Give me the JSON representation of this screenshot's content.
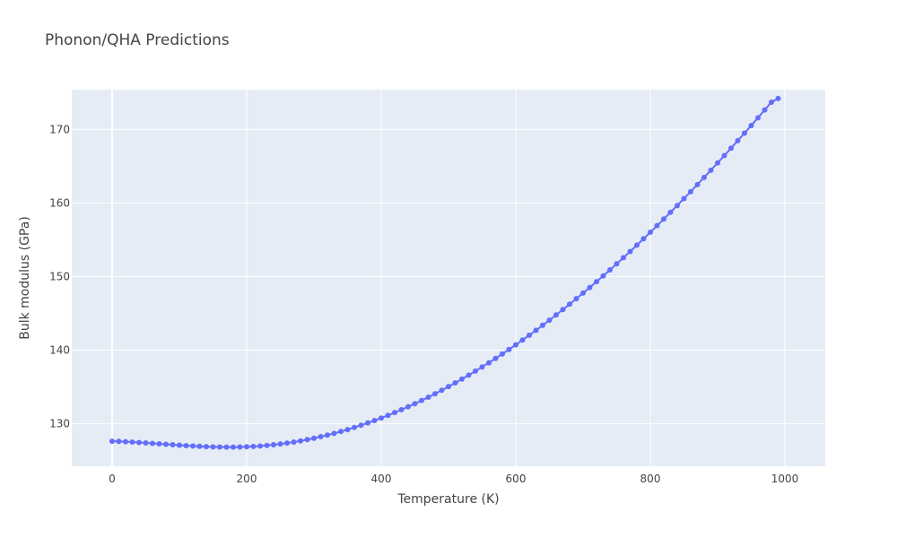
{
  "chart_data": {
    "type": "line",
    "title": "Phonon/QHA Predictions",
    "xlabel": "Temperature (K)",
    "ylabel": "Bulk modulus (GPa)",
    "xlim": [
      -60,
      1060
    ],
    "ylim": [
      124.2,
      175.4
    ],
    "xticks": [
      0,
      200,
      400,
      600,
      800,
      1000
    ],
    "yticks": [
      130,
      140,
      150,
      160,
      170
    ],
    "grid": true,
    "legend": "none",
    "series": [
      {
        "color": "#636efa",
        "mode": "lines+markers",
        "x_start": 0,
        "x_step": 10,
        "values": [
          127.6,
          127.58,
          127.54,
          127.49,
          127.43,
          127.37,
          127.31,
          127.25,
          127.18,
          127.12,
          127.06,
          127.01,
          126.96,
          126.91,
          126.87,
          126.84,
          126.82,
          126.81,
          126.81,
          126.82,
          126.85,
          126.89,
          126.95,
          127.03,
          127.12,
          127.23,
          127.35,
          127.49,
          127.65,
          127.82,
          128.01,
          128.22,
          128.44,
          128.67,
          128.93,
          129.19,
          129.48,
          129.77,
          130.09,
          130.42,
          130.76,
          131.12,
          131.5,
          131.89,
          132.29,
          132.71,
          133.14,
          133.59,
          134.06,
          134.53,
          135.03,
          135.53,
          136.05,
          136.59,
          137.13,
          137.7,
          138.27,
          138.86,
          139.47,
          140.08,
          140.71,
          141.36,
          142.01,
          142.68,
          143.37,
          144.06,
          144.77,
          145.5,
          146.23,
          146.98,
          147.74,
          148.51,
          149.3,
          150.09,
          150.9,
          151.72,
          152.56,
          153.4,
          154.26,
          155.13,
          156.01,
          156.91,
          157.81,
          158.73,
          159.65,
          160.59,
          161.54,
          162.5,
          163.47,
          164.45,
          165.44,
          166.44,
          167.45,
          168.47,
          169.49,
          170.53,
          171.58,
          172.64,
          173.7,
          174.2
        ]
      }
    ]
  }
}
